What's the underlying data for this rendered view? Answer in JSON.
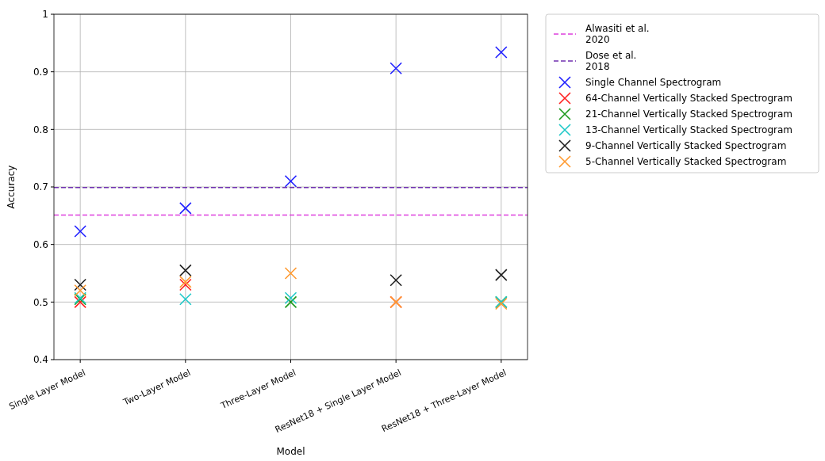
{
  "chart_data": {
    "type": "scatter",
    "xlabel": "Model",
    "ylabel": "Accuracy",
    "categories": [
      "Single Layer Model",
      "Two-Layer Model",
      "Three-Layer Model",
      "ResNet18 + Single Layer Model",
      "ResNet18 + Three-Layer Model"
    ],
    "ylim": [
      0.4,
      1.0
    ],
    "yticks": [
      0.4,
      0.5,
      0.6,
      0.7,
      0.8,
      0.9,
      1.0
    ],
    "grid": true,
    "legend": "top right",
    "marker": "cross",
    "ref_lines": [
      {
        "axis": "y",
        "value": 0.651,
        "label": "Alwasiti et al.\n2020",
        "color": "#dd3fdd",
        "line_style": "dashed"
      },
      {
        "axis": "y",
        "value": 0.699,
        "label": "Dose et al.\n2018",
        "color": "#7030b0",
        "line_style": "dashed"
      }
    ],
    "series": [
      {
        "name": "Single Channel Spectrogram",
        "color": "#1f1fff",
        "values": [
          0.623,
          0.663,
          0.71,
          0.906,
          0.934
        ]
      },
      {
        "name": "64-Channel Vertically Stacked Spectrogram",
        "color": "#ff2020",
        "values": [
          0.5,
          0.53,
          null,
          0.5,
          null
        ]
      },
      {
        "name": "21-Channel Vertically Stacked Spectrogram",
        "color": "#1f9a1f",
        "values": [
          0.505,
          null,
          0.5,
          null,
          0.5
        ]
      },
      {
        "name": "13-Channel Vertically Stacked Spectrogram",
        "color": "#1fc8c8",
        "values": [
          0.507,
          0.505,
          0.507,
          null,
          0.5
        ]
      },
      {
        "name": "9-Channel Vertically Stacked Spectrogram",
        "color": "#202020",
        "values": [
          0.53,
          0.555,
          null,
          0.538,
          0.547
        ]
      },
      {
        "name": "5-Channel Vertically Stacked Spectrogram",
        "color": "#ff9a30",
        "values": [
          0.52,
          0.535,
          0.55,
          0.5,
          0.497
        ]
      }
    ]
  }
}
